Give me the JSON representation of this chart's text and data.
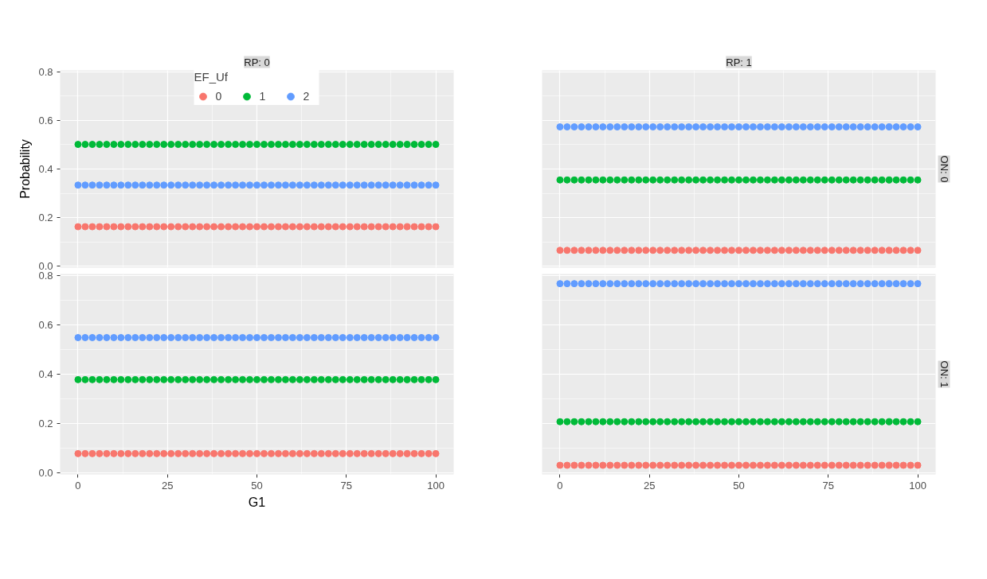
{
  "chart_data": [
    {
      "type": "scatter",
      "title": "RP: 0",
      "ylabel": "Probability",
      "legend_title": "EF_Uf",
      "legend": "top",
      "marker": "circle",
      "grid": true,
      "tick_labels": "y",
      "xlim": [
        -5,
        105
      ],
      "ylim": [
        -0.005,
        0.805
      ],
      "xticks": [
        0,
        25,
        50,
        75,
        100
      ],
      "yticks": [
        {
          "value": 0,
          "label": "0.0"
        },
        0.2,
        0.4,
        0.6,
        0.8
      ],
      "x": [
        0,
        2,
        4,
        6,
        8,
        10,
        12,
        14,
        16,
        18,
        20,
        22,
        24,
        26,
        28,
        30,
        32,
        34,
        36,
        38,
        40,
        42,
        44,
        46,
        48,
        50,
        52,
        54,
        56,
        58,
        60,
        62,
        64,
        66,
        68,
        70,
        72,
        74,
        76,
        78,
        80,
        82,
        84,
        86,
        88,
        90,
        92,
        94,
        96,
        98,
        100
      ],
      "series": [
        {
          "name": "0",
          "color": "#f8766d",
          "values": [
            0.163,
            0.163,
            0.163,
            0.163,
            0.163,
            0.163,
            0.163,
            0.163,
            0.163,
            0.163,
            0.163,
            0.163,
            0.163,
            0.163,
            0.163,
            0.163,
            0.163,
            0.163,
            0.163,
            0.163,
            0.163,
            0.163,
            0.163,
            0.163,
            0.163,
            0.163,
            0.163,
            0.163,
            0.163,
            0.163,
            0.163,
            0.163,
            0.163,
            0.163,
            0.163,
            0.163,
            0.163,
            0.163,
            0.163,
            0.163,
            0.163,
            0.163,
            0.163,
            0.163,
            0.163,
            0.163,
            0.163,
            0.163,
            0.163,
            0.163,
            0.163
          ]
        },
        {
          "name": "1",
          "color": "#00ba38",
          "values": [
            0.501,
            0.501,
            0.501,
            0.501,
            0.501,
            0.501,
            0.501,
            0.501,
            0.501,
            0.501,
            0.501,
            0.501,
            0.501,
            0.501,
            0.501,
            0.501,
            0.501,
            0.501,
            0.501,
            0.501,
            0.501,
            0.501,
            0.501,
            0.501,
            0.501,
            0.501,
            0.501,
            0.501,
            0.501,
            0.501,
            0.501,
            0.501,
            0.501,
            0.501,
            0.501,
            0.501,
            0.501,
            0.501,
            0.501,
            0.501,
            0.501,
            0.501,
            0.501,
            0.501,
            0.501,
            0.501,
            0.501,
            0.501,
            0.501,
            0.501,
            0.501
          ]
        },
        {
          "name": "2",
          "color": "#619cff",
          "values": [
            0.334,
            0.334,
            0.334,
            0.334,
            0.334,
            0.334,
            0.334,
            0.334,
            0.334,
            0.334,
            0.334,
            0.334,
            0.334,
            0.334,
            0.334,
            0.334,
            0.334,
            0.334,
            0.334,
            0.334,
            0.334,
            0.334,
            0.334,
            0.334,
            0.334,
            0.334,
            0.334,
            0.334,
            0.334,
            0.334,
            0.334,
            0.334,
            0.334,
            0.334,
            0.334,
            0.334,
            0.334,
            0.334,
            0.334,
            0.334,
            0.334,
            0.334,
            0.334,
            0.334,
            0.334,
            0.334,
            0.334,
            0.334,
            0.334,
            0.334,
            0.334
          ]
        }
      ]
    },
    {
      "type": "scatter",
      "title": "RP: 1",
      "annotations": [
        "ON: 0"
      ],
      "marker": "circle",
      "grid": true,
      "tick_labels": false,
      "xlim": [
        -5,
        105
      ],
      "ylim": [
        -0.005,
        0.805
      ],
      "xticks": [
        0,
        25,
        50,
        75,
        100
      ],
      "yticks": [
        0,
        0.2,
        0.4,
        0.6,
        0.8
      ],
      "x": [
        0,
        2,
        4,
        6,
        8,
        10,
        12,
        14,
        16,
        18,
        20,
        22,
        24,
        26,
        28,
        30,
        32,
        34,
        36,
        38,
        40,
        42,
        44,
        46,
        48,
        50,
        52,
        54,
        56,
        58,
        60,
        62,
        64,
        66,
        68,
        70,
        72,
        74,
        76,
        78,
        80,
        82,
        84,
        86,
        88,
        90,
        92,
        94,
        96,
        98,
        100
      ],
      "series": [
        {
          "color": "#f8766d",
          "values": [
            0.066,
            0.066,
            0.066,
            0.066,
            0.066,
            0.066,
            0.066,
            0.066,
            0.066,
            0.066,
            0.066,
            0.066,
            0.066,
            0.066,
            0.066,
            0.066,
            0.066,
            0.066,
            0.066,
            0.066,
            0.066,
            0.066,
            0.066,
            0.066,
            0.066,
            0.066,
            0.066,
            0.066,
            0.066,
            0.066,
            0.066,
            0.066,
            0.066,
            0.066,
            0.066,
            0.066,
            0.066,
            0.066,
            0.066,
            0.066,
            0.066,
            0.066,
            0.066,
            0.066,
            0.066,
            0.066,
            0.066,
            0.066,
            0.066,
            0.066,
            0.066
          ]
        },
        {
          "color": "#00ba38",
          "values": [
            0.355,
            0.355,
            0.355,
            0.355,
            0.355,
            0.355,
            0.355,
            0.355,
            0.355,
            0.355,
            0.355,
            0.355,
            0.355,
            0.355,
            0.355,
            0.355,
            0.355,
            0.355,
            0.355,
            0.355,
            0.355,
            0.355,
            0.355,
            0.355,
            0.355,
            0.355,
            0.355,
            0.355,
            0.355,
            0.355,
            0.355,
            0.355,
            0.355,
            0.355,
            0.355,
            0.355,
            0.355,
            0.355,
            0.355,
            0.355,
            0.355,
            0.355,
            0.355,
            0.355,
            0.355,
            0.355,
            0.355,
            0.355,
            0.355,
            0.355,
            0.355
          ]
        },
        {
          "color": "#619cff",
          "values": [
            0.573,
            0.573,
            0.573,
            0.573,
            0.573,
            0.573,
            0.573,
            0.573,
            0.573,
            0.573,
            0.573,
            0.573,
            0.573,
            0.573,
            0.573,
            0.573,
            0.573,
            0.573,
            0.573,
            0.573,
            0.573,
            0.573,
            0.573,
            0.573,
            0.573,
            0.573,
            0.573,
            0.573,
            0.573,
            0.573,
            0.573,
            0.573,
            0.573,
            0.573,
            0.573,
            0.573,
            0.573,
            0.573,
            0.573,
            0.573,
            0.573,
            0.573,
            0.573,
            0.573,
            0.573,
            0.573,
            0.573,
            0.573,
            0.573,
            0.573,
            0.573
          ]
        }
      ]
    },
    {
      "type": "scatter",
      "xlabel": "G1",
      "marker": "circle",
      "grid": true,
      "xlim": [
        -5,
        105
      ],
      "ylim": [
        -0.005,
        0.805
      ],
      "xticks": [
        0,
        25,
        50,
        75,
        100
      ],
      "yticks": [
        {
          "value": 0,
          "label": "0.0"
        },
        0.2,
        0.4,
        0.6,
        0.8
      ],
      "x": [
        0,
        2,
        4,
        6,
        8,
        10,
        12,
        14,
        16,
        18,
        20,
        22,
        24,
        26,
        28,
        30,
        32,
        34,
        36,
        38,
        40,
        42,
        44,
        46,
        48,
        50,
        52,
        54,
        56,
        58,
        60,
        62,
        64,
        66,
        68,
        70,
        72,
        74,
        76,
        78,
        80,
        82,
        84,
        86,
        88,
        90,
        92,
        94,
        96,
        98,
        100
      ],
      "series": [
        {
          "color": "#f8766d",
          "values": [
            0.079,
            0.079,
            0.079,
            0.079,
            0.079,
            0.079,
            0.079,
            0.079,
            0.079,
            0.079,
            0.079,
            0.079,
            0.079,
            0.079,
            0.079,
            0.079,
            0.079,
            0.079,
            0.079,
            0.079,
            0.079,
            0.079,
            0.079,
            0.079,
            0.079,
            0.079,
            0.079,
            0.079,
            0.079,
            0.079,
            0.079,
            0.079,
            0.079,
            0.079,
            0.079,
            0.079,
            0.079,
            0.079,
            0.079,
            0.079,
            0.079,
            0.079,
            0.079,
            0.079,
            0.079,
            0.079,
            0.079,
            0.079,
            0.079,
            0.079,
            0.079
          ]
        },
        {
          "color": "#00ba38",
          "values": [
            0.378,
            0.378,
            0.378,
            0.378,
            0.378,
            0.378,
            0.378,
            0.378,
            0.378,
            0.378,
            0.378,
            0.378,
            0.378,
            0.378,
            0.378,
            0.378,
            0.378,
            0.378,
            0.378,
            0.378,
            0.378,
            0.378,
            0.378,
            0.378,
            0.378,
            0.378,
            0.378,
            0.378,
            0.378,
            0.378,
            0.378,
            0.378,
            0.378,
            0.378,
            0.378,
            0.378,
            0.378,
            0.378,
            0.378,
            0.378,
            0.378,
            0.378,
            0.378,
            0.378,
            0.378,
            0.378,
            0.378,
            0.378,
            0.378,
            0.378,
            0.378
          ]
        },
        {
          "color": "#619cff",
          "values": [
            0.548,
            0.548,
            0.548,
            0.548,
            0.548,
            0.548,
            0.548,
            0.548,
            0.548,
            0.548,
            0.548,
            0.548,
            0.548,
            0.548,
            0.548,
            0.548,
            0.548,
            0.548,
            0.548,
            0.548,
            0.548,
            0.548,
            0.548,
            0.548,
            0.548,
            0.548,
            0.548,
            0.548,
            0.548,
            0.548,
            0.548,
            0.548,
            0.548,
            0.548,
            0.548,
            0.548,
            0.548,
            0.548,
            0.548,
            0.548,
            0.548,
            0.548,
            0.548,
            0.548,
            0.548,
            0.548,
            0.548,
            0.548,
            0.548,
            0.548,
            0.548
          ]
        }
      ]
    },
    {
      "type": "scatter",
      "annotations": [
        "ON: 1"
      ],
      "marker": "circle",
      "grid": true,
      "tick_labels": "x",
      "xlim": [
        -5,
        105
      ],
      "ylim": [
        -0.005,
        0.805
      ],
      "xticks": [
        0,
        25,
        50,
        75,
        100
      ],
      "yticks": [
        0,
        0.2,
        0.4,
        0.6,
        0.8
      ],
      "x": [
        0,
        2,
        4,
        6,
        8,
        10,
        12,
        14,
        16,
        18,
        20,
        22,
        24,
        26,
        28,
        30,
        32,
        34,
        36,
        38,
        40,
        42,
        44,
        46,
        48,
        50,
        52,
        54,
        56,
        58,
        60,
        62,
        64,
        66,
        68,
        70,
        72,
        74,
        76,
        78,
        80,
        82,
        84,
        86,
        88,
        90,
        92,
        94,
        96,
        98,
        100
      ],
      "series": [
        {
          "color": "#f8766d",
          "values": [
            0.032,
            0.032,
            0.032,
            0.032,
            0.032,
            0.032,
            0.032,
            0.032,
            0.032,
            0.032,
            0.032,
            0.032,
            0.032,
            0.032,
            0.032,
            0.032,
            0.032,
            0.032,
            0.032,
            0.032,
            0.032,
            0.032,
            0.032,
            0.032,
            0.032,
            0.032,
            0.032,
            0.032,
            0.032,
            0.032,
            0.032,
            0.032,
            0.032,
            0.032,
            0.032,
            0.032,
            0.032,
            0.032,
            0.032,
            0.032,
            0.032,
            0.032,
            0.032,
            0.032,
            0.032,
            0.032,
            0.032,
            0.032,
            0.032,
            0.032,
            0.032
          ]
        },
        {
          "color": "#00ba38",
          "values": [
            0.208,
            0.208,
            0.208,
            0.208,
            0.208,
            0.208,
            0.208,
            0.208,
            0.208,
            0.208,
            0.208,
            0.208,
            0.208,
            0.208,
            0.208,
            0.208,
            0.208,
            0.208,
            0.208,
            0.208,
            0.208,
            0.208,
            0.208,
            0.208,
            0.208,
            0.208,
            0.208,
            0.208,
            0.208,
            0.208,
            0.208,
            0.208,
            0.208,
            0.208,
            0.208,
            0.208,
            0.208,
            0.208,
            0.208,
            0.208,
            0.208,
            0.208,
            0.208,
            0.208,
            0.208,
            0.208,
            0.208,
            0.208,
            0.208,
            0.208,
            0.208
          ]
        },
        {
          "color": "#619cff",
          "values": [
            0.766,
            0.766,
            0.766,
            0.766,
            0.766,
            0.766,
            0.766,
            0.766,
            0.766,
            0.766,
            0.766,
            0.766,
            0.766,
            0.766,
            0.766,
            0.766,
            0.766,
            0.766,
            0.766,
            0.766,
            0.766,
            0.766,
            0.766,
            0.766,
            0.766,
            0.766,
            0.766,
            0.766,
            0.766,
            0.766,
            0.766,
            0.766,
            0.766,
            0.766,
            0.766,
            0.766,
            0.766,
            0.766,
            0.766,
            0.766,
            0.766,
            0.766,
            0.766,
            0.766,
            0.766,
            0.766,
            0.766,
            0.766,
            0.766,
            0.766,
            0.766
          ]
        }
      ]
    }
  ]
}
